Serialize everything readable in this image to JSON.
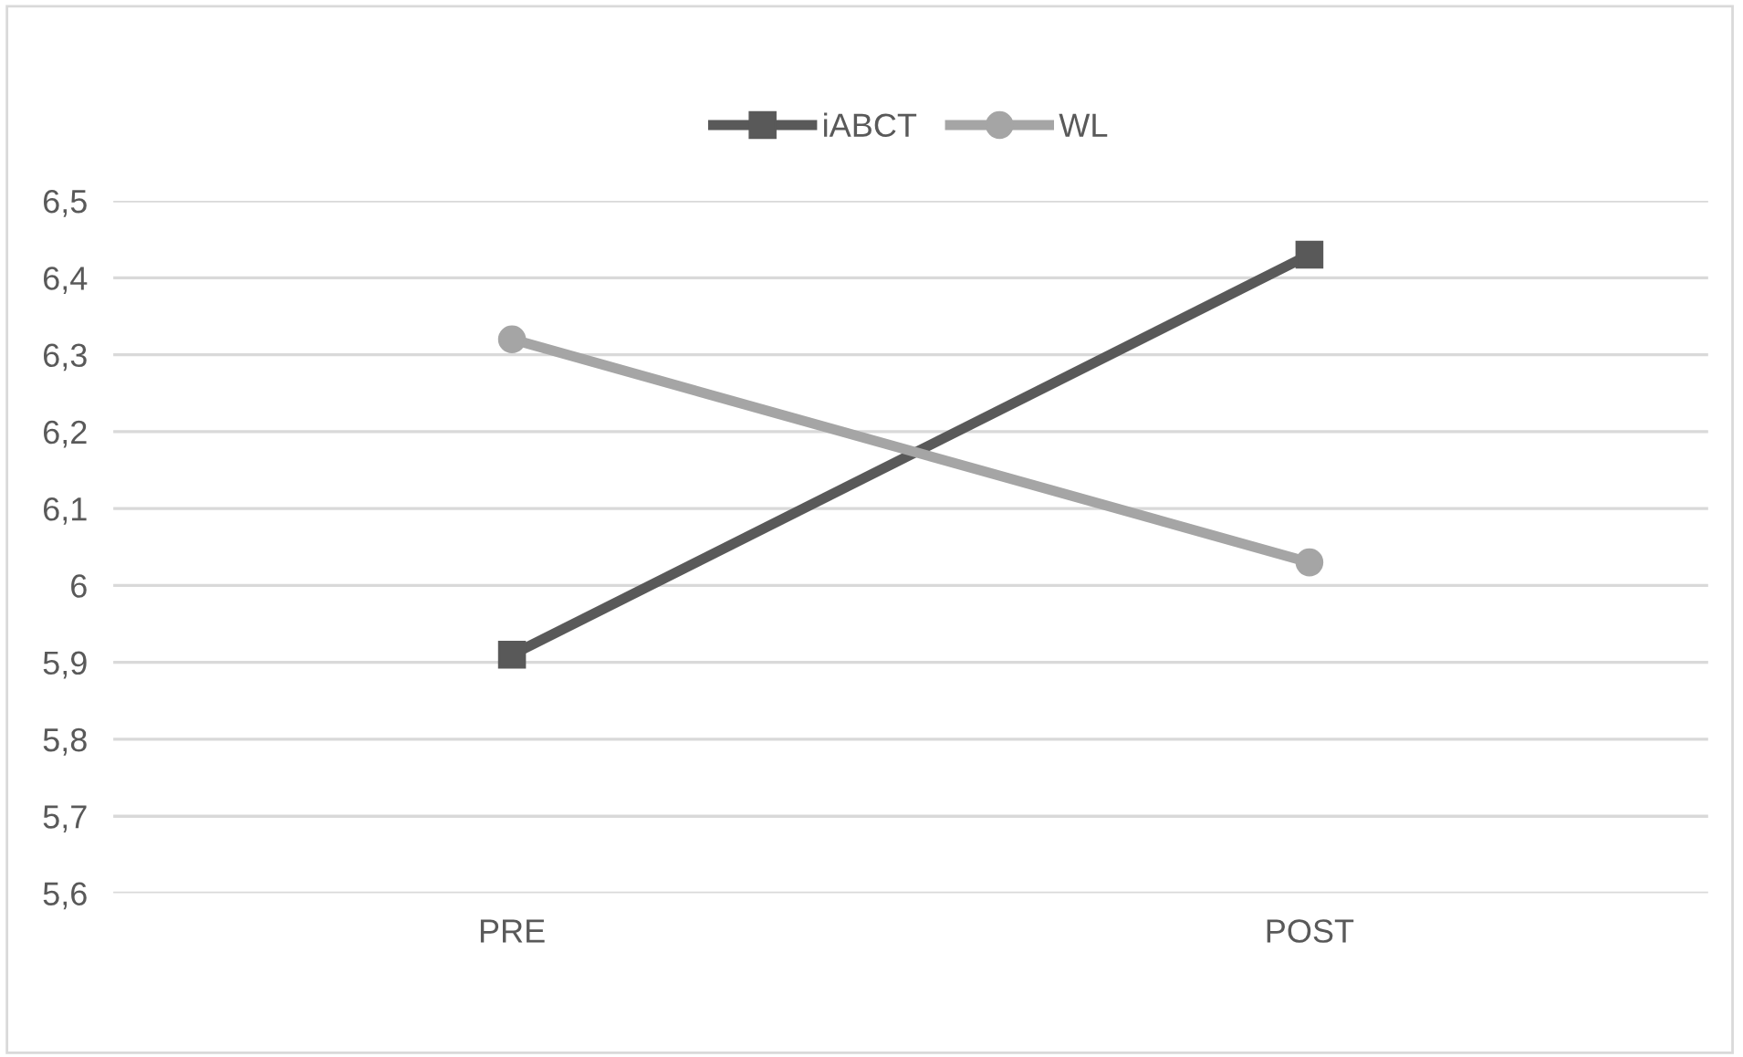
{
  "chart_data": {
    "type": "line",
    "categories": [
      "PRE",
      "POST"
    ],
    "series": [
      {
        "name": "iABCT",
        "color": "#595959",
        "values": [
          5.91,
          6.43
        ],
        "marker": "square"
      },
      {
        "name": "WL",
        "color": "#a5a5a5",
        "values": [
          6.32,
          6.03
        ],
        "marker": "circle"
      }
    ],
    "ylim": [
      5.6,
      6.5
    ],
    "yticks": [
      {
        "value": 5.6,
        "label": "5,6"
      },
      {
        "value": 5.7,
        "label": "5,7"
      },
      {
        "value": 5.8,
        "label": "5,8"
      },
      {
        "value": 5.9,
        "label": "5,9"
      },
      {
        "value": 6.0,
        "label": "6"
      },
      {
        "value": 6.1,
        "label": "6,1"
      },
      {
        "value": 6.2,
        "label": "6,2"
      },
      {
        "value": 6.3,
        "label": "6,3"
      },
      {
        "value": 6.4,
        "label": "6,4"
      },
      {
        "value": 6.5,
        "label": "6,5"
      }
    ],
    "grid": "y",
    "legend": "top",
    "line_style": "solid"
  }
}
